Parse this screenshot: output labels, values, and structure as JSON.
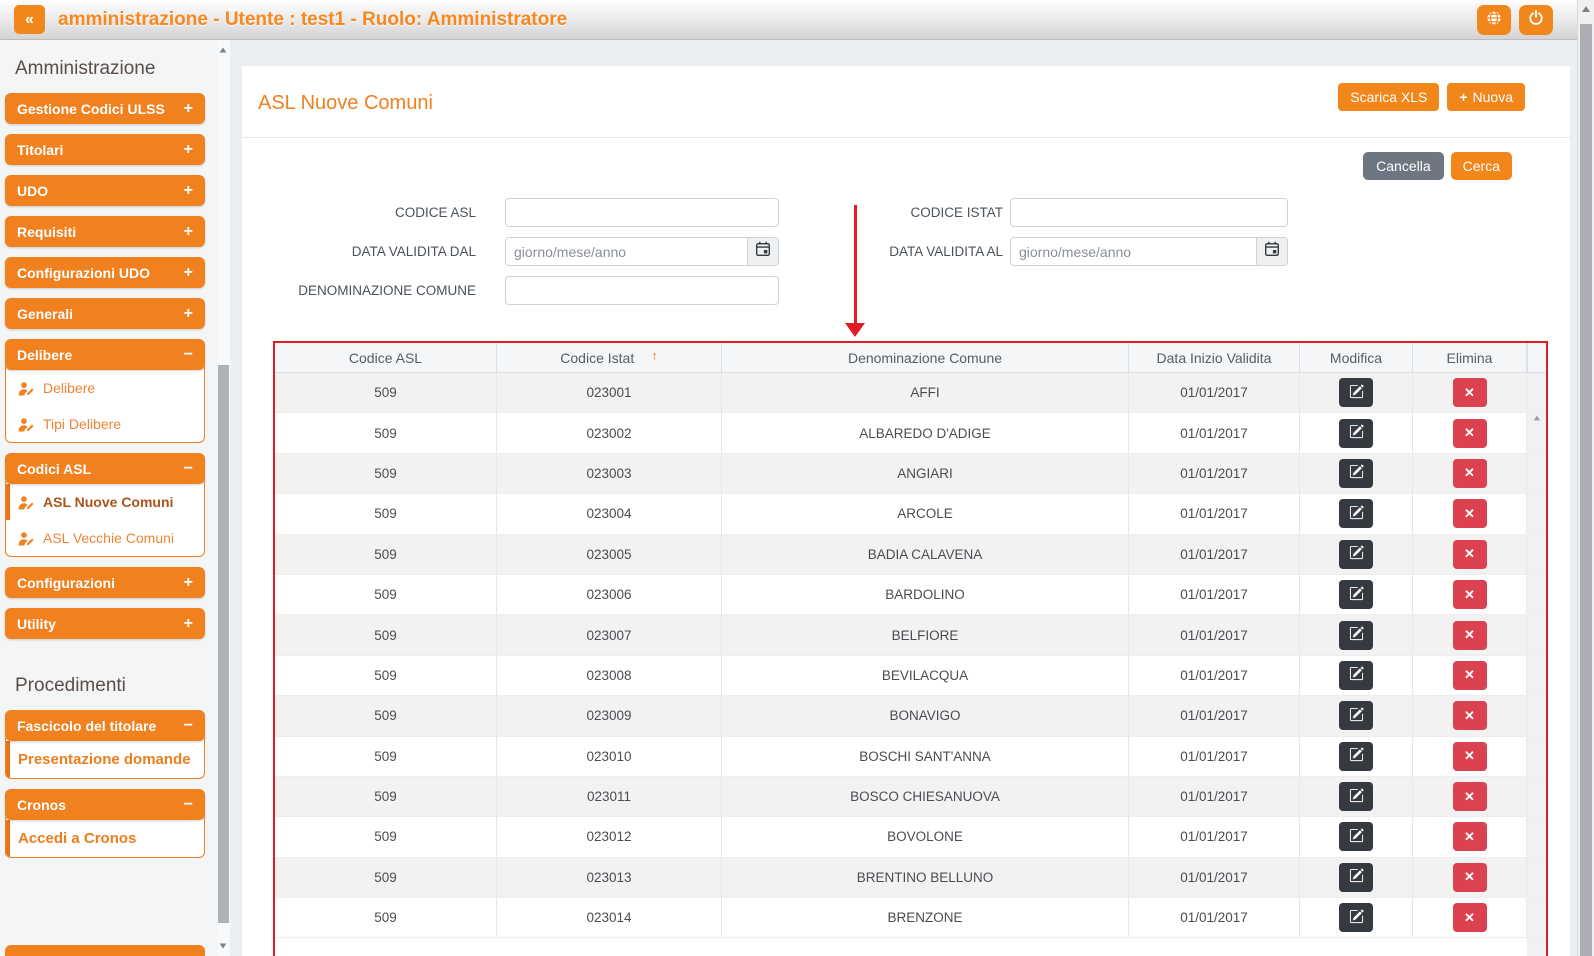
{
  "icons": {
    "collapse_chevrons": "«",
    "plus": "+",
    "minus": "−",
    "sort_asc": "↑",
    "close": "✕"
  },
  "colors": {
    "accent_orange": "#F1801F",
    "annotation_red": "#E01B24",
    "edit_button_dark": "#343A40",
    "delete_button_red": "#DC4150",
    "cancel_gray": "#6E7681"
  },
  "topbar": {
    "title": "amministrazione - Utente : test1 - Ruolo: Amministratore"
  },
  "sidebar": {
    "sections": [
      {
        "title": "Amministrazione",
        "groups": [
          {
            "label": "Gestione Codici ULSS",
            "state": "collapsed"
          },
          {
            "label": "Titolari",
            "state": "collapsed"
          },
          {
            "label": "UDO",
            "state": "collapsed"
          },
          {
            "label": "Requisiti",
            "state": "collapsed"
          },
          {
            "label": "Configurazioni UDO",
            "state": "collapsed"
          },
          {
            "label": "Generali",
            "state": "collapsed"
          },
          {
            "label": "Delibere",
            "state": "expanded",
            "items": [
              {
                "label": "Delibere",
                "icon": "user-edit-icon"
              },
              {
                "label": "Tipi Delibere",
                "icon": "user-edit-icon"
              }
            ]
          },
          {
            "label": "Codici ASL",
            "state": "expanded",
            "items": [
              {
                "label": "ASL Nuove Comuni",
                "icon": "user-edit-icon",
                "active": true
              },
              {
                "label": "ASL Vecchie Comuni",
                "icon": "user-edit-icon"
              }
            ]
          },
          {
            "label": "Configurazioni",
            "state": "collapsed"
          },
          {
            "label": "Utility",
            "state": "collapsed"
          }
        ]
      },
      {
        "title": "Procedimenti",
        "groups": [
          {
            "label": "Fascicolo del titolare",
            "state": "expanded",
            "items": [
              {
                "label": "Presentazione domande",
                "emphasis": true
              }
            ]
          },
          {
            "label": "Cronos",
            "state": "expanded",
            "items": [
              {
                "label": "Accedi a Cronos",
                "emphasis": true
              }
            ]
          }
        ]
      }
    ]
  },
  "main": {
    "page_title": "ASL Nuove Comuni",
    "toolbar": {
      "download_label": "Scarica XLS",
      "new_label": "Nuova"
    },
    "search": {
      "codice_asl": {
        "label": "CODICE ASL",
        "value": ""
      },
      "codice_istat": {
        "label": "CODICE ISTAT",
        "value": ""
      },
      "data_validita_dal": {
        "label": "DATA VALIDITA DAL",
        "value": "",
        "placeholder": "giorno/mese/anno"
      },
      "data_validita_al": {
        "label": "DATA VALIDITA AL",
        "value": "",
        "placeholder": "giorno/mese/anno"
      },
      "denominazione_comune": {
        "label": "DENOMINAZIONE COMUNE",
        "value": ""
      },
      "cancel_label": "Cancella",
      "search_label": "Cerca"
    },
    "table": {
      "columns": [
        {
          "label": "Codice ASL"
        },
        {
          "label": "Codice Istat",
          "sorted": "asc"
        },
        {
          "label": "Denominazione Comune"
        },
        {
          "label": "Data Inizio Validita"
        },
        {
          "label": "Modifica"
        },
        {
          "label": "Elimina"
        }
      ],
      "rows": [
        [
          "509",
          "023001",
          "AFFI",
          "01/01/2017"
        ],
        [
          "509",
          "023002",
          "ALBAREDO D'ADIGE",
          "01/01/2017"
        ],
        [
          "509",
          "023003",
          "ANGIARI",
          "01/01/2017"
        ],
        [
          "509",
          "023004",
          "ARCOLE",
          "01/01/2017"
        ],
        [
          "509",
          "023005",
          "BADIA CALAVENA",
          "01/01/2017"
        ],
        [
          "509",
          "023006",
          "BARDOLINO",
          "01/01/2017"
        ],
        [
          "509",
          "023007",
          "BELFIORE",
          "01/01/2017"
        ],
        [
          "509",
          "023008",
          "BEVILACQUA",
          "01/01/2017"
        ],
        [
          "509",
          "023009",
          "BONAVIGO",
          "01/01/2017"
        ],
        [
          "509",
          "023010",
          "BOSCHI SANT'ANNA",
          "01/01/2017"
        ],
        [
          "509",
          "023011",
          "BOSCO CHIESANUOVA",
          "01/01/2017"
        ],
        [
          "509",
          "023012",
          "BOVOLONE",
          "01/01/2017"
        ],
        [
          "509",
          "023013",
          "BRENTINO BELLUNO",
          "01/01/2017"
        ],
        [
          "509",
          "023014",
          "BRENZONE",
          "01/01/2017"
        ]
      ]
    }
  }
}
